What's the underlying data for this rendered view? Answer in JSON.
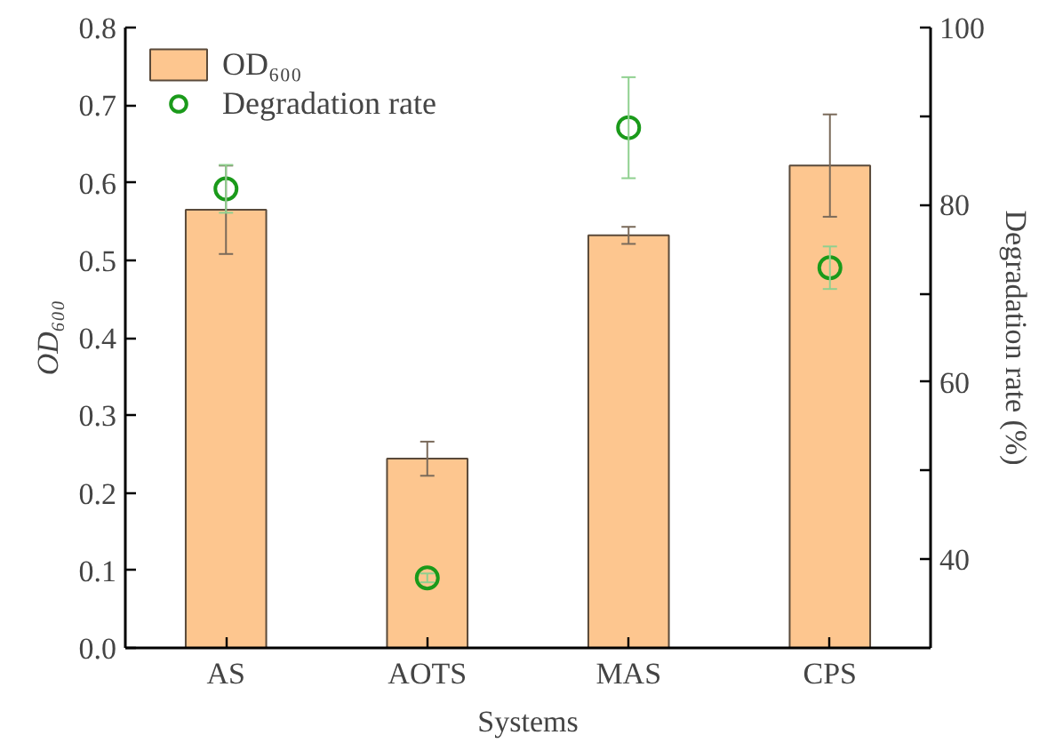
{
  "chart_data": {
    "type": "bar",
    "categories": [
      "AS",
      "AOTS",
      "MAS",
      "CPS"
    ],
    "xlabel": "Systems",
    "ylabel": "OD₆₀₀",
    "y2label": "Degradation rate (%)",
    "ylim": [
      0,
      0.8
    ],
    "yticks": [
      {
        "value": 0,
        "label": "0.0"
      },
      {
        "value": 0.1,
        "label": "0.1"
      },
      {
        "value": 0.2,
        "label": "0.2"
      },
      {
        "value": 0.3,
        "label": "0.3"
      },
      {
        "value": 0.4,
        "label": "0.4"
      },
      {
        "value": 0.5,
        "label": "0.5"
      },
      {
        "value": 0.6,
        "label": "0.6"
      },
      {
        "value": 0.7,
        "label": "0.7"
      },
      {
        "value": 0.8,
        "label": "0.8"
      }
    ],
    "y2lim": [
      30,
      100
    ],
    "y2ticks": [
      40,
      {
        "value": 50,
        "label": null
      },
      60,
      {
        "value": 70,
        "label": null
      },
      80,
      {
        "value": 90,
        "label": null
      },
      100
    ],
    "series": [
      {
        "name": "OD₆₀₀",
        "color": "#fdc68f",
        "values": [
          0.565,
          0.244,
          0.532,
          0.622
        ],
        "errors": [
          0.057,
          0.022,
          0.011,
          0.066
        ]
      },
      {
        "name": "Degradation rate",
        "type": "scatter",
        "axis": "y2",
        "color": "#1a9a1a",
        "marker": "circle",
        "values": [
          81.8,
          37.9,
          88.7,
          72.9
        ],
        "errors": [
          2.7,
          0.5,
          5.7,
          2.4
        ]
      }
    ],
    "legend": "top left",
    "grid": false
  }
}
